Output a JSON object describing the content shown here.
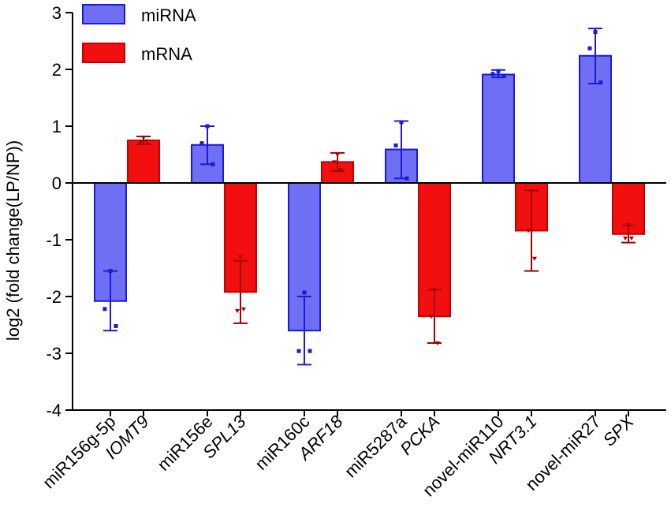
{
  "chart_data": {
    "type": "bar",
    "title": "",
    "xlabel": "",
    "ylabel": "log2 (fold change(LP/NP))",
    "ylim": [
      -4,
      3
    ],
    "yticks": [
      3,
      2,
      1,
      0,
      -1,
      -2,
      -3,
      -4
    ],
    "grid": false,
    "legend_position": "top-left",
    "colors": {
      "miRNA_fill": "#6e6ff2",
      "miRNA_edge": "#1a1adb",
      "mRNA_fill": "#f20f0f",
      "mRNA_edge": "#c40000",
      "mRNA_errorbar": "#a30000"
    },
    "series": [
      {
        "name": "miRNA",
        "type": "miRNA"
      },
      {
        "name": "mRNA",
        "type": "mRNA"
      }
    ],
    "categories": [
      {
        "label": "miR156g-5p",
        "type": "miRNA",
        "italic": false,
        "value": -2.08,
        "err_low": -2.6,
        "err_high": -1.55,
        "points": [
          -1.55,
          -2.22,
          -2.52
        ]
      },
      {
        "label": "IOMT9",
        "type": "mRNA",
        "italic": true,
        "value": 0.75,
        "err_low": 0.68,
        "err_high": 0.82,
        "points": [
          0.8,
          0.72,
          0.74
        ]
      },
      {
        "label": "miR156e",
        "type": "miRNA",
        "italic": false,
        "value": 0.67,
        "err_low": 0.33,
        "err_high": 1.0,
        "points": [
          1.0,
          0.7,
          0.33
        ]
      },
      {
        "label": "SPL13",
        "type": "mRNA",
        "italic": true,
        "value": -1.92,
        "err_low": -2.47,
        "err_high": -1.37,
        "points": [
          -1.3,
          -2.25,
          -2.22
        ]
      },
      {
        "label": "miR160c",
        "type": "miRNA",
        "italic": false,
        "value": -2.6,
        "err_low": -3.2,
        "err_high": -2.0,
        "points": [
          -1.93,
          -2.96,
          -2.96
        ]
      },
      {
        "label": "ARF18",
        "type": "mRNA",
        "italic": true,
        "value": 0.37,
        "err_low": 0.21,
        "err_high": 0.53,
        "points": [
          0.5,
          0.37,
          0.23
        ]
      },
      {
        "label": "miR5287a",
        "type": "miRNA",
        "italic": false,
        "value": 0.59,
        "err_low": 0.08,
        "err_high": 1.09,
        "points": [
          1.07,
          0.66,
          0.08
        ]
      },
      {
        "label": "PCKA",
        "type": "mRNA",
        "italic": true,
        "value": -2.35,
        "err_low": -2.82,
        "err_high": -1.88,
        "points": [
          -1.88,
          -2.35,
          -2.82
        ]
      },
      {
        "label": "novel-miR110",
        "type": "miRNA",
        "italic": false,
        "value": 1.91,
        "err_low": 1.86,
        "err_high": 1.99,
        "points": [
          1.97,
          1.92,
          1.89
        ]
      },
      {
        "label": "NRT3.1",
        "type": "mRNA",
        "italic": true,
        "value": -0.84,
        "err_low": -1.55,
        "err_high": -0.13,
        "points": [
          -0.15,
          -0.84,
          -1.33
        ]
      },
      {
        "label": "novel-miR27",
        "type": "miRNA",
        "italic": false,
        "value": 2.24,
        "err_low": 1.75,
        "err_high": 2.72,
        "points": [
          2.66,
          2.37,
          1.77
        ]
      },
      {
        "label": "SPX",
        "type": "mRNA",
        "italic": true,
        "value": -0.9,
        "err_low": -1.05,
        "err_high": -0.75,
        "points": [
          -0.74,
          -0.97,
          -0.97
        ]
      }
    ]
  }
}
